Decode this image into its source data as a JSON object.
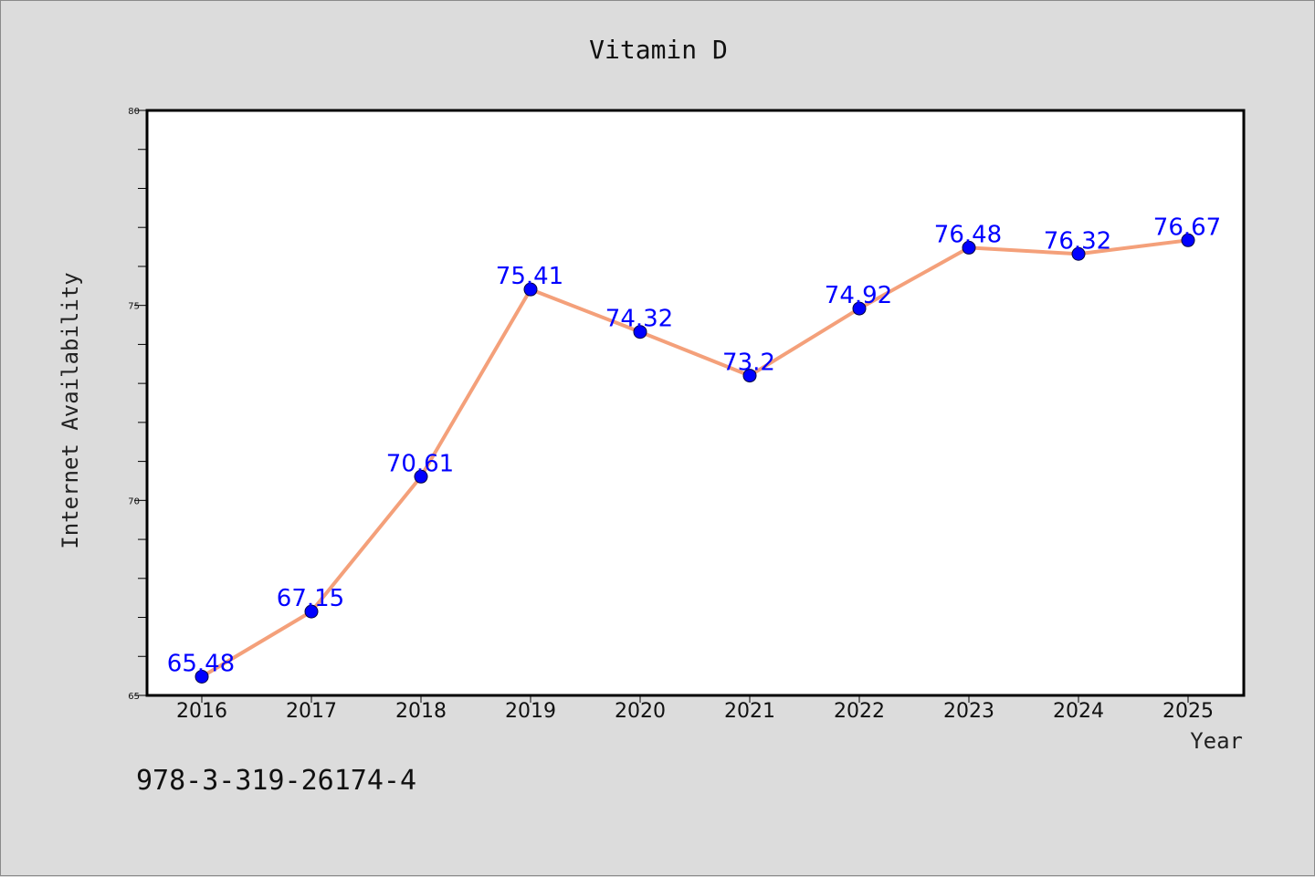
{
  "chart_data": {
    "type": "line",
    "title": "Vitamin D",
    "xlabel": "Year",
    "ylabel": "Internet Availability",
    "categories": [
      "2016",
      "2017",
      "2018",
      "2019",
      "2020",
      "2021",
      "2022",
      "2023",
      "2024",
      "2025"
    ],
    "series": [
      {
        "values": [
          65.48,
          67.15,
          70.61,
          75.41,
          74.32,
          73.2,
          74.92,
          76.48,
          76.32,
          76.67
        ],
        "data_labels": [
          "65.48",
          "67.15",
          "70.61",
          "75.41",
          "74.32",
          "73.2",
          "74.92",
          "76.48",
          "76.32",
          "76.67"
        ],
        "line_color": "#f4a07a",
        "marker_color": "#0000ff"
      }
    ],
    "ylim": [
      65,
      80
    ],
    "yticks": [
      "65",
      "70",
      "75",
      "80"
    ],
    "grid": false,
    "legend": "none"
  },
  "footnote": "978-3-319-26174-4",
  "colors": {
    "background": "#dcdcdc",
    "plot_background": "#ffffff",
    "line": "#f4a07a",
    "marker": "#0000ff",
    "data_label": "#0000ff"
  }
}
